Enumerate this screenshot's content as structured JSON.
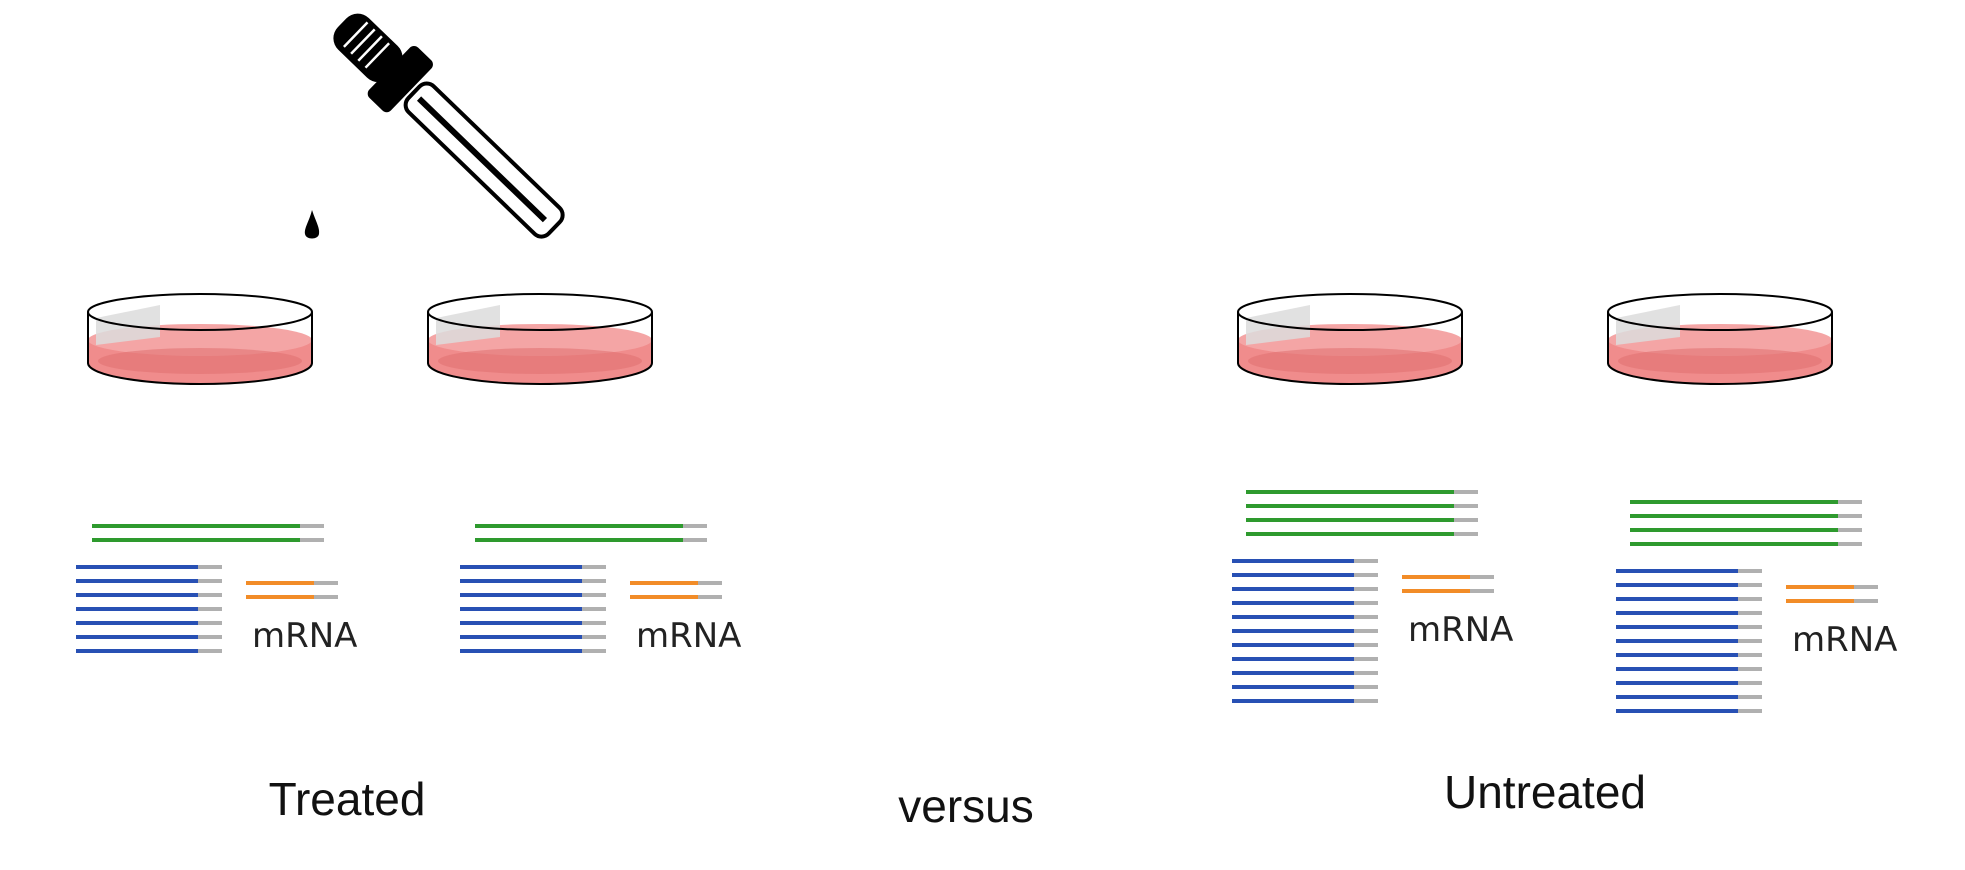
{
  "labels": {
    "treated": "Treated",
    "versus": "versus",
    "untreated": "Untreated"
  },
  "dishes": [
    {
      "group": "treated",
      "mrna_label": "mRNA",
      "green_count": 2,
      "blue_count": 7,
      "orange_count": 2
    },
    {
      "group": "treated",
      "mrna_label": "mRNA",
      "green_count": 2,
      "blue_count": 7,
      "orange_count": 2
    },
    {
      "group": "untreated",
      "mrna_label": "mRNA",
      "green_count": 4,
      "blue_count": 11,
      "orange_count": 2
    },
    {
      "group": "untreated",
      "mrna_label": "mRNA",
      "green_count": 4,
      "blue_count": 11,
      "orange_count": 2
    }
  ],
  "colors": {
    "green": "#2e9a2e",
    "blue": "#2850b4",
    "orange": "#f28c28",
    "grey": "#b0b0b0",
    "medium": "#f08c8c",
    "medium_dark": "#e06f6f"
  }
}
